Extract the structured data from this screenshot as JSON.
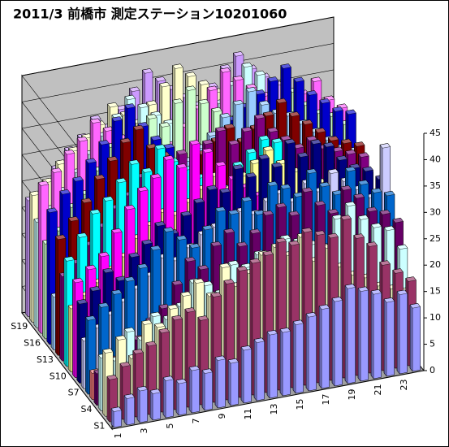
{
  "chart_data": {
    "type": "bar3d",
    "title": "2011/3 前橋市 測定ステーション10201060",
    "categories": [
      "1",
      null,
      "3",
      null,
      "5",
      null,
      "7",
      null,
      "9",
      null,
      "11",
      null,
      "13",
      null,
      "15",
      null,
      "17",
      null,
      "19",
      null,
      "21",
      null,
      "23",
      null
    ],
    "ylim": [
      0,
      45
    ],
    "yticks": [
      0,
      5,
      10,
      15,
      20,
      25,
      30,
      35,
      40,
      45
    ],
    "grid": true,
    "series": [
      {
        "name": "S1",
        "color": "#9999ff",
        "values": [
          3,
          5,
          6,
          5,
          7,
          6,
          8,
          7,
          9,
          8,
          10,
          11,
          12,
          12,
          13,
          14,
          15,
          16,
          18,
          17,
          16,
          14,
          15,
          12
        ]
      },
      {
        "name": null,
        "color": "#993366",
        "values": [
          8,
          10,
          12,
          13,
          15,
          17,
          18,
          16,
          20,
          22,
          24,
          25,
          26,
          28,
          27,
          29,
          28,
          27,
          30,
          26,
          24,
          20,
          18,
          16
        ]
      },
      {
        "name": null,
        "color": "#ffffcc",
        "values": [
          12,
          14,
          10,
          16,
          15,
          18,
          20,
          22,
          19,
          24,
          20,
          22,
          25,
          26,
          24,
          27,
          22,
          24,
          20,
          18,
          17,
          15,
          14,
          13
        ]
      },
      {
        "name": "S4",
        "color": "#ccffff",
        "values": [
          10,
          9,
          14,
          12,
          16,
          15,
          17,
          21,
          20,
          18,
          23,
          22,
          24,
          21,
          26,
          25,
          24,
          23,
          28,
          30,
          27,
          25,
          24,
          20
        ]
      },
      {
        "name": null,
        "color": "#660066",
        "values": [
          6,
          8,
          9,
          11,
          14,
          16,
          20,
          24,
          22,
          26,
          28,
          25,
          27,
          30,
          31,
          29,
          33,
          30,
          28,
          32,
          30,
          27,
          26,
          24
        ]
      },
      {
        "name": null,
        "color": "#ff8080",
        "values": [
          5,
          6,
          4,
          7,
          8,
          9,
          10,
          8,
          11,
          12,
          9,
          10,
          13,
          11,
          12,
          14,
          13,
          12,
          11,
          10,
          9,
          8,
          7,
          6
        ]
      },
      {
        "name": "S7",
        "color": "#0066cc",
        "values": [
          14,
          16,
          18,
          20,
          22,
          25,
          28,
          26,
          24,
          27,
          30,
          29,
          31,
          28,
          33,
          32,
          30,
          34,
          31,
          29,
          33,
          30,
          28,
          27
        ]
      },
      {
        "name": null,
        "color": "#ccccff",
        "values": [
          9,
          11,
          13,
          15,
          17,
          19,
          22,
          21,
          23,
          25,
          26,
          24,
          28,
          27,
          29,
          30,
          28,
          31,
          29,
          32,
          30,
          28,
          26,
          35
        ]
      },
      {
        "name": null,
        "color": "#000080",
        "values": [
          15,
          17,
          20,
          18,
          22,
          24,
          27,
          25,
          28,
          30,
          32,
          31,
          35,
          33,
          36,
          34,
          38,
          35,
          37,
          36,
          33,
          31,
          30,
          28
        ]
      },
      {
        "name": "S10",
        "color": "#ff00ff",
        "values": [
          18,
          20,
          22,
          26,
          30,
          33,
          35,
          38,
          36,
          40,
          38,
          35,
          32,
          30,
          28,
          27,
          25,
          24,
          22,
          20,
          19,
          18,
          17,
          16
        ]
      },
      {
        "name": null,
        "color": "#ffff99",
        "values": [
          12,
          14,
          16,
          18,
          20,
          23,
          25,
          27,
          26,
          28,
          30,
          32,
          29,
          31,
          33,
          35,
          32,
          30,
          28,
          27,
          26,
          25,
          24,
          23
        ]
      },
      {
        "name": null,
        "color": "#00ffff",
        "values": [
          20,
          24,
          28,
          30,
          33,
          36,
          34,
          38,
          35,
          33,
          31,
          30,
          28,
          32,
          34,
          36,
          35,
          33,
          31,
          30,
          29,
          28,
          27,
          26
        ]
      },
      {
        "name": "S13",
        "color": "#800080",
        "values": [
          16,
          18,
          21,
          24,
          27,
          29,
          32,
          30,
          33,
          35,
          34,
          36,
          38,
          35,
          37,
          39,
          36,
          34,
          32,
          33,
          31,
          30,
          29,
          28
        ]
      },
      {
        "name": null,
        "color": "#800000",
        "values": [
          22,
          25,
          28,
          32,
          35,
          38,
          40,
          36,
          34,
          32,
          30,
          33,
          35,
          37,
          34,
          36,
          38,
          40,
          37,
          35,
          33,
          31,
          30,
          29
        ]
      },
      {
        "name": null,
        "color": "#99ccff",
        "values": [
          10,
          12,
          15,
          18,
          22,
          25,
          28,
          30,
          27,
          29,
          31,
          33,
          35,
          38,
          40,
          42,
          39,
          37,
          36,
          34,
          32,
          30,
          28,
          27
        ]
      },
      {
        "name": "S16",
        "color": "#0000cc",
        "values": [
          25,
          28,
          30,
          33,
          36,
          40,
          42,
          38,
          35,
          33,
          30,
          28,
          31,
          34,
          36,
          38,
          40,
          42,
          44,
          41,
          38,
          36,
          34,
          33
        ]
      },
      {
        "name": null,
        "color": "#ccffcc",
        "values": [
          18,
          20,
          24,
          26,
          30,
          34,
          32,
          35,
          38,
          36,
          40,
          42,
          39,
          37,
          35,
          33,
          31,
          34,
          36,
          38,
          35,
          33,
          32,
          30
        ]
      },
      {
        "name": null,
        "color": "#ff66ff",
        "values": [
          28,
          30,
          33,
          35,
          38,
          36,
          34,
          32,
          30,
          28,
          31,
          34,
          37,
          40,
          43,
          41,
          39,
          37,
          35,
          33,
          36,
          38,
          34,
          32
        ]
      },
      {
        "name": "S19",
        "color": "#ccffff",
        "values": [
          20,
          22,
          25,
          28,
          31,
          34,
          37,
          40,
          38,
          36,
          34,
          32,
          30,
          33,
          36,
          39,
          42,
          40,
          38,
          36,
          34,
          32,
          31,
          30
        ]
      },
      {
        "name": null,
        "color": "#ffffcc",
        "values": [
          24,
          26,
          29,
          31,
          33,
          35,
          38,
          36,
          34,
          37,
          40,
          43,
          41,
          39,
          37,
          35,
          33,
          31,
          30,
          32,
          34,
          33,
          31,
          29
        ]
      },
      {
        "name": null,
        "color": "#cc99ff",
        "values": [
          22,
          24,
          27,
          30,
          32,
          35,
          33,
          36,
          39,
          42,
          40,
          38,
          36,
          34,
          37,
          40,
          42,
          39,
          37,
          35,
          33,
          31,
          30,
          28
        ]
      }
    ]
  }
}
